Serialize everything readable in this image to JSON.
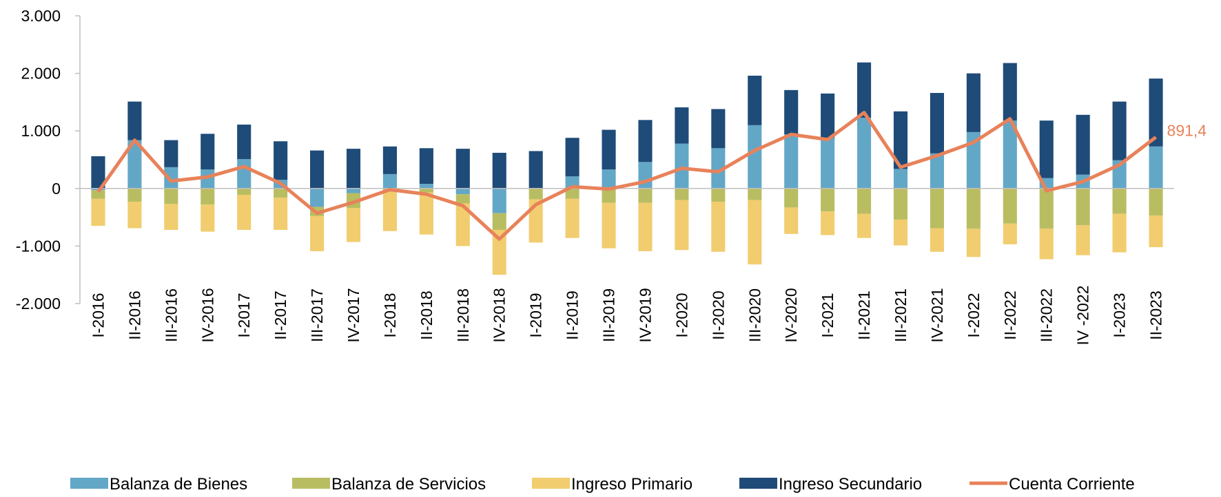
{
  "chart_data": {
    "type": "stacked-bar-line",
    "categories": [
      "I-2016",
      "II-2016",
      "III-2016",
      "IV-2016",
      "I-2017",
      "II-2017",
      "III-2017",
      "IV-2017",
      "I-2018",
      "II-2018",
      "III-2018",
      "IV-2018",
      "I-2019",
      "II-2019",
      "III-2019",
      "IV-2019",
      "I-2020",
      "II-2020",
      "III-2020",
      "IV-2020",
      "I-2021",
      "II-2021",
      "III-2021",
      "IV-2021",
      "I-2022",
      "II-2022",
      "III-2022",
      "IV -2022",
      "I-2023",
      "II-2023"
    ],
    "series": [
      {
        "name": "Balanza de Bienes",
        "color": "#63a7c7",
        "kind": "bar",
        "values": [
          -30,
          840,
          370,
          330,
          510,
          150,
          -320,
          -80,
          250,
          80,
          -100,
          -430,
          0,
          210,
          330,
          460,
          780,
          700,
          1100,
          940,
          880,
          1230,
          340,
          610,
          980,
          1180,
          180,
          240,
          490,
          730
        ]
      },
      {
        "name": "Balanza de Servicios",
        "color": "#b9bd62",
        "kind": "bar",
        "values": [
          -150,
          -230,
          -270,
          -280,
          -110,
          -160,
          -160,
          -260,
          -60,
          -70,
          -160,
          -290,
          -190,
          -180,
          -250,
          -250,
          -200,
          -230,
          -200,
          -330,
          -400,
          -440,
          -540,
          -690,
          -700,
          -610,
          -700,
          -640,
          -440,
          -470
        ]
      },
      {
        "name": "Ingreso Primario",
        "color": "#f1cd6f",
        "kind": "bar",
        "values": [
          -470,
          -460,
          -450,
          -470,
          -610,
          -560,
          -610,
          -590,
          -680,
          -730,
          -740,
          -780,
          -750,
          -680,
          -790,
          -840,
          -870,
          -870,
          -1120,
          -460,
          -410,
          -420,
          -450,
          -410,
          -490,
          -360,
          -530,
          -520,
          -670,
          -550
        ]
      },
      {
        "name": "Ingreso Secundario",
        "color": "#1f4b78",
        "kind": "bar",
        "values": [
          560,
          670,
          470,
          620,
          600,
          670,
          660,
          690,
          480,
          620,
          690,
          620,
          650,
          670,
          690,
          730,
          630,
          680,
          860,
          770,
          770,
          960,
          1000,
          1050,
          1020,
          1000,
          1000,
          1040,
          1020,
          1180
        ]
      },
      {
        "name": "Cuenta Corriente",
        "color": "#e8825a",
        "kind": "line",
        "values": [
          -60,
          840,
          130,
          200,
          380,
          90,
          -430,
          -240,
          -20,
          -100,
          -300,
          -880,
          -280,
          30,
          -10,
          120,
          350,
          290,
          660,
          940,
          850,
          1320,
          370,
          570,
          800,
          1210,
          -40,
          120,
          410,
          891.4
        ],
        "value_labels": [
          null,
          null,
          null,
          null,
          null,
          null,
          null,
          null,
          null,
          null,
          null,
          null,
          null,
          null,
          null,
          null,
          null,
          null,
          null,
          null,
          null,
          null,
          null,
          null,
          null,
          null,
          null,
          null,
          null,
          "891,4"
        ]
      }
    ],
    "ylim": [
      -2000,
      3000
    ],
    "yticks": [
      {
        "value": -2000,
        "label": "-2.000"
      },
      {
        "value": -1000,
        "label": "-1.000"
      },
      0,
      {
        "value": 1000,
        "label": "1.000"
      },
      {
        "value": 2000,
        "label": "2.000"
      },
      {
        "value": 3000,
        "label": "3.000"
      }
    ],
    "legend": "bottom"
  }
}
